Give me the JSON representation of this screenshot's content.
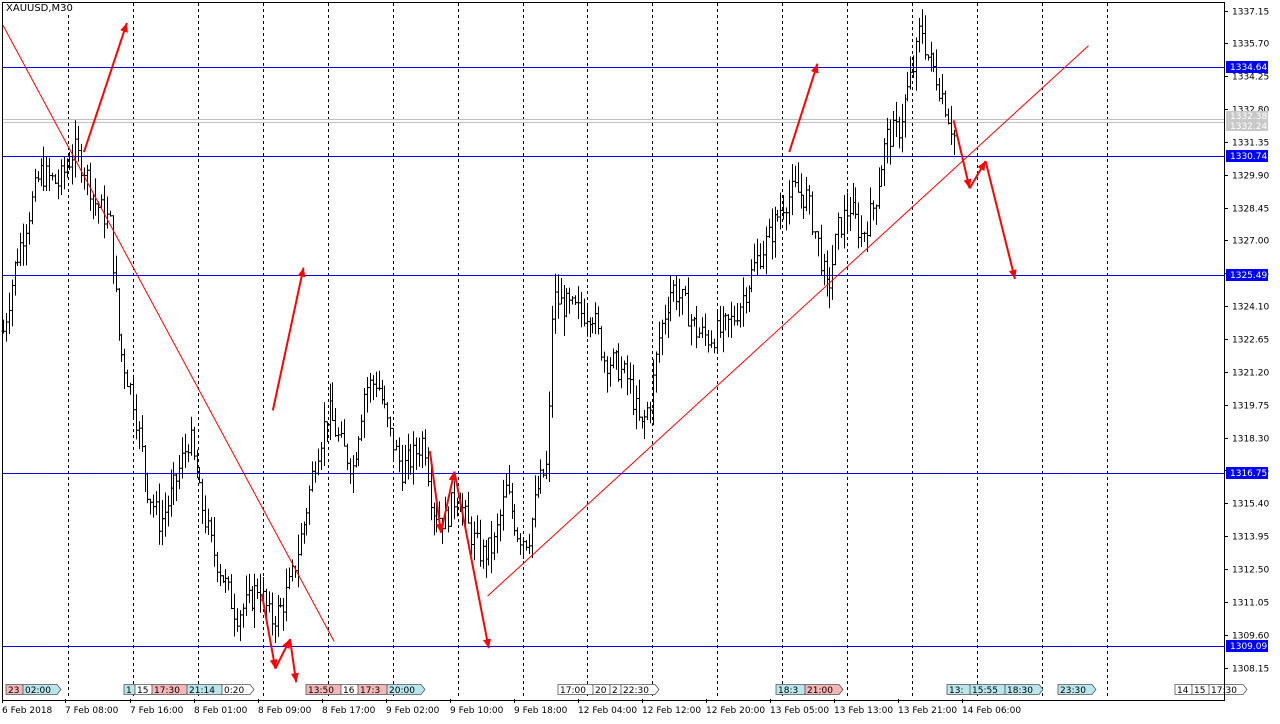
{
  "chart_data": {
    "type": "candlestick",
    "title": "XAUUSD,M30",
    "y_range": [
      1307.0,
      1338.3
    ],
    "grid": "vertical-dotted",
    "price_ticks": [
      "1337.15",
      "1335.70",
      "1334.25",
      "1332.80",
      "1331.35",
      "1329.90",
      "1328.45",
      "1327.00",
      "1325.55",
      "1324.10",
      "1322.65",
      "1321.20",
      "1319.75",
      "1318.30",
      "1316.85",
      "1315.40",
      "1313.95",
      "1312.50",
      "1311.05",
      "1309.60",
      "1308.15"
    ],
    "time_labels": [
      "6 Feb 2018",
      "7 Feb 08:00",
      "7 Feb 16:00",
      "8 Feb 01:00",
      "8 Feb 09:00",
      "8 Feb 17:00",
      "9 Feb 02:00",
      "9 Feb 10:00",
      "9 Feb 18:00",
      "12 Feb 04:00",
      "12 Feb 12:00",
      "12 Feb 20:00",
      "13 Feb 05:00",
      "13 Feb 13:00",
      "13 Feb 21:00",
      "14 Feb 06:00"
    ],
    "horizontal_levels": [
      {
        "value": 1334.64,
        "label": "1334.64"
      },
      {
        "value": 1330.74,
        "label": "1330.74"
      },
      {
        "value": 1325.49,
        "label": "1325.49"
      },
      {
        "value": 1316.75,
        "label": "1316.75"
      },
      {
        "value": 1309.09,
        "label": "1309.09"
      }
    ],
    "current_prices": [
      {
        "value": 1332.38,
        "label": "1332.38"
      },
      {
        "value": 1332.24,
        "label": "1332.24"
      }
    ],
    "trend_lines": [
      {
        "from": [
          0,
          1336.5
        ],
        "to": [
          0.27,
          1309.3
        ]
      },
      {
        "from": [
          0.395,
          1311.3
        ],
        "to": [
          0.885,
          1335.6
        ]
      }
    ],
    "arrows": [
      {
        "from": [
          0.066,
          1330.9
        ],
        "to": [
          0.101,
          1336.6
        ]
      },
      {
        "from": [
          0.22,
          1319.5
        ],
        "to": [
          0.245,
          1325.8
        ]
      },
      {
        "from": [
          0.211,
          1311.4
        ],
        "to": [
          0.222,
          1308.1
        ]
      },
      {
        "from": [
          0.222,
          1308.1
        ],
        "to": [
          0.234,
          1309.4
        ]
      },
      {
        "from": [
          0.234,
          1309.4
        ],
        "to": [
          0.239,
          1307.5
        ]
      },
      {
        "from": [
          0.348,
          1317.7
        ],
        "to": [
          0.357,
          1314.1
        ]
      },
      {
        "from": [
          0.357,
          1314.1
        ],
        "to": [
          0.368,
          1316.8
        ]
      },
      {
        "from": [
          0.368,
          1316.8
        ],
        "to": [
          0.396,
          1309.0
        ]
      },
      {
        "from": [
          0.641,
          1330.9
        ],
        "to": [
          0.664,
          1334.8
        ]
      },
      {
        "from": [
          0.775,
          1332.3
        ],
        "to": [
          0.788,
          1329.3
        ]
      },
      {
        "from": [
          0.788,
          1329.3
        ],
        "to": [
          0.801,
          1330.5
        ]
      },
      {
        "from": [
          0.801,
          1330.5
        ],
        "to": [
          0.825,
          1325.3
        ]
      }
    ],
    "events": [
      {
        "label": "23",
        "color": "#f4b6b6"
      },
      {
        "label": "02:00",
        "color": "#b9e6ec"
      },
      {
        "label": "1",
        "color": "#b9e6ec"
      },
      {
        "label": "15",
        "color": "#ffffff"
      },
      {
        "label": "17:30",
        "color": "#f4b6b6"
      },
      {
        "label": "21:14",
        "color": "#b9e6ec"
      },
      {
        "label": "0:20",
        "color": "#ffffff"
      },
      {
        "label": "13:50",
        "color": "#f4b6b6"
      },
      {
        "label": "16",
        "color": "#ffffff"
      },
      {
        "label": "17:3",
        "color": "#f4b6b6"
      },
      {
        "label": "20:00",
        "color": "#b9e6ec"
      },
      {
        "label": "17:00",
        "color": "#ffffff"
      },
      {
        "label": "20",
        "color": "#ffffff"
      },
      {
        "label": "2",
        "color": "#ffffff"
      },
      {
        "label": "22:30",
        "color": "#ffffff"
      },
      {
        "label": "18:3",
        "color": "#b9e6ec"
      },
      {
        "label": "21:00",
        "color": "#f4b6b6"
      },
      {
        "label": "13:",
        "color": "#b9e6ec"
      },
      {
        "label": "15:55",
        "color": "#b9e6ec"
      },
      {
        "label": "18:30",
        "color": "#b9e6ec"
      },
      {
        "label": "23:30",
        "color": "#b9e6ec"
      },
      {
        "label": "14",
        "color": "#ffffff"
      },
      {
        "label": "15",
        "color": "#ffffff"
      },
      {
        "label": "17:30",
        "color": "#ffffff"
      }
    ],
    "series_keypoints": [
      [
        0,
        1323.0
      ],
      [
        0.01,
        1326.0
      ],
      [
        0.02,
        1328.0
      ],
      [
        0.03,
        1330.0
      ],
      [
        0.045,
        1329.5
      ],
      [
        0.058,
        1331.0
      ],
      [
        0.066,
        1330.2
      ],
      [
        0.075,
        1328.7
      ],
      [
        0.087,
        1327.8
      ],
      [
        0.095,
        1322.3
      ],
      [
        0.106,
        1320.0
      ],
      [
        0.118,
        1316.0
      ],
      [
        0.128,
        1314.5
      ],
      [
        0.14,
        1316.2
      ],
      [
        0.152,
        1318.4
      ],
      [
        0.16,
        1315.8
      ],
      [
        0.17,
        1313.5
      ],
      [
        0.18,
        1312.0
      ],
      [
        0.19,
        1310.5
      ],
      [
        0.2,
        1311.0
      ],
      [
        0.208,
        1311.8
      ],
      [
        0.218,
        1310.2
      ],
      [
        0.227,
        1310.8
      ],
      [
        0.235,
        1312.0
      ],
      [
        0.245,
        1314.5
      ],
      [
        0.255,
        1317.5
      ],
      [
        0.265,
        1319.5
      ],
      [
        0.275,
        1318.0
      ],
      [
        0.285,
        1317.0
      ],
      [
        0.295,
        1320.5
      ],
      [
        0.305,
        1320.8
      ],
      [
        0.315,
        1318.5
      ],
      [
        0.325,
        1316.9
      ],
      [
        0.335,
        1317.5
      ],
      [
        0.343,
        1318.3
      ],
      [
        0.35,
        1315.2
      ],
      [
        0.36,
        1314.6
      ],
      [
        0.37,
        1315.9
      ],
      [
        0.38,
        1314.2
      ],
      [
        0.39,
        1313.1
      ],
      [
        0.4,
        1313.5
      ],
      [
        0.41,
        1316.0
      ],
      [
        0.42,
        1314.0
      ],
      [
        0.428,
        1313.8
      ],
      [
        0.436,
        1316.1
      ],
      [
        0.444,
        1317.1
      ],
      [
        0.448,
        1324.5
      ],
      [
        0.455,
        1324.2
      ],
      [
        0.47,
        1323.8
      ],
      [
        0.48,
        1323.9
      ],
      [
        0.49,
        1321.8
      ],
      [
        0.5,
        1321.5
      ],
      [
        0.51,
        1320.8
      ],
      [
        0.52,
        1318.6
      ],
      [
        0.528,
        1320.0
      ],
      [
        0.535,
        1322.8
      ],
      [
        0.545,
        1325.0
      ],
      [
        0.555,
        1324.2
      ],
      [
        0.565,
        1323.0
      ],
      [
        0.575,
        1322.7
      ],
      [
        0.585,
        1323.0
      ],
      [
        0.595,
        1323.5
      ],
      [
        0.605,
        1324.8
      ],
      [
        0.615,
        1326.2
      ],
      [
        0.625,
        1327.2
      ],
      [
        0.635,
        1328.6
      ],
      [
        0.645,
        1329.2
      ],
      [
        0.655,
        1328.9
      ],
      [
        0.665,
        1326.7
      ],
      [
        0.672,
        1324.6
      ],
      [
        0.68,
        1327.4
      ],
      [
        0.69,
        1328.5
      ],
      [
        0.7,
        1327.2
      ],
      [
        0.71,
        1328.6
      ],
      [
        0.72,
        1331.5
      ],
      [
        0.73,
        1331.9
      ],
      [
        0.735,
        1333.1
      ],
      [
        0.743,
        1334.8
      ],
      [
        0.748,
        1336.6
      ],
      [
        0.753,
        1335.2
      ],
      [
        0.76,
        1334.4
      ],
      [
        0.767,
        1333.2
      ],
      [
        0.775,
        1331.6
      ]
    ]
  }
}
